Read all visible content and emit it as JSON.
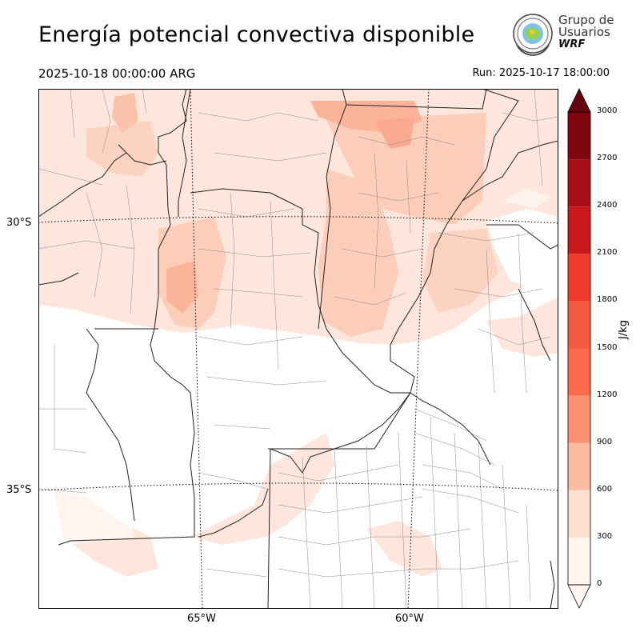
{
  "title": "Energía potencial convectiva disponible",
  "valid_time": "2025-10-18 00:00:00 ARG",
  "run_time": "Run: 2025-10-17 18:00:00",
  "logo": {
    "line1": "Grupo de",
    "line2": "Usuarios",
    "line3": "WRF"
  },
  "lat_labels": [
    "30°S",
    "35°S"
  ],
  "lon_labels": [
    "65°W",
    "60°W"
  ],
  "colorbar": {
    "unit": "J/kg",
    "ticks": [
      "0",
      "300",
      "600",
      "900",
      "1200",
      "1500",
      "1800",
      "2100",
      "2400",
      "2700",
      "3000"
    ],
    "colors": [
      "#fff5f0",
      "#fee0d2",
      "#fcbba1",
      "#fc9272",
      "#fb6a4a",
      "#f45a3f",
      "#ef3b2c",
      "#cb181d",
      "#a50f15",
      "#7f0611"
    ],
    "extend_low": "#fff5f0",
    "extend_high": "#67000d"
  },
  "colors": {
    "shade_light": "#fee6dc",
    "shade_mid": "#fccdb8",
    "shade_strong": "#fbb49a"
  }
}
